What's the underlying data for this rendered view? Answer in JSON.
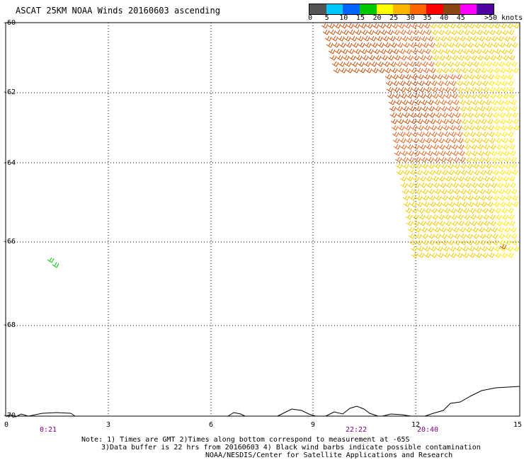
{
  "title": "ASCAT 25KM NOAA Winds 20160603 ascending",
  "colorbar": {
    "labels": [
      "0",
      "5",
      "10",
      "15",
      "20",
      "25",
      "30",
      "35",
      "40",
      "45",
      ">50 knots"
    ],
    "colors": [
      "#555555",
      "#00c8ff",
      "#0064ff",
      "#00c800",
      "#ffff00",
      "#ffb400",
      "#ff6400",
      "#ff0000",
      "#8b4513",
      "#ff00ff",
      "#5000a0"
    ]
  },
  "map": {
    "lat_labels": [
      "-60",
      "-62",
      "-64",
      "-66",
      "-68",
      "-70"
    ],
    "lon_labels": [
      "0",
      "3",
      "6",
      "9",
      "12",
      "15"
    ],
    "time_labels": [
      "0:21",
      "22:22",
      "20:40"
    ]
  },
  "notes": {
    "line1": "Note: 1) Times are GMT 2)Times along bottom correspond to measurement at -65S",
    "line2": "3)Data buffer is 22 hrs from 20160603 4) Black wind barbs indicate possible contamination",
    "credit": "NOAA/NESDIS/Center for Satellite Applications and Research"
  },
  "colors": {
    "orange": "#e0641e",
    "dark_orange": "#c8500a",
    "yellow": "#f0c800",
    "light_yellow": "#ffe600",
    "green": "#00c800",
    "coast": "#000000"
  }
}
